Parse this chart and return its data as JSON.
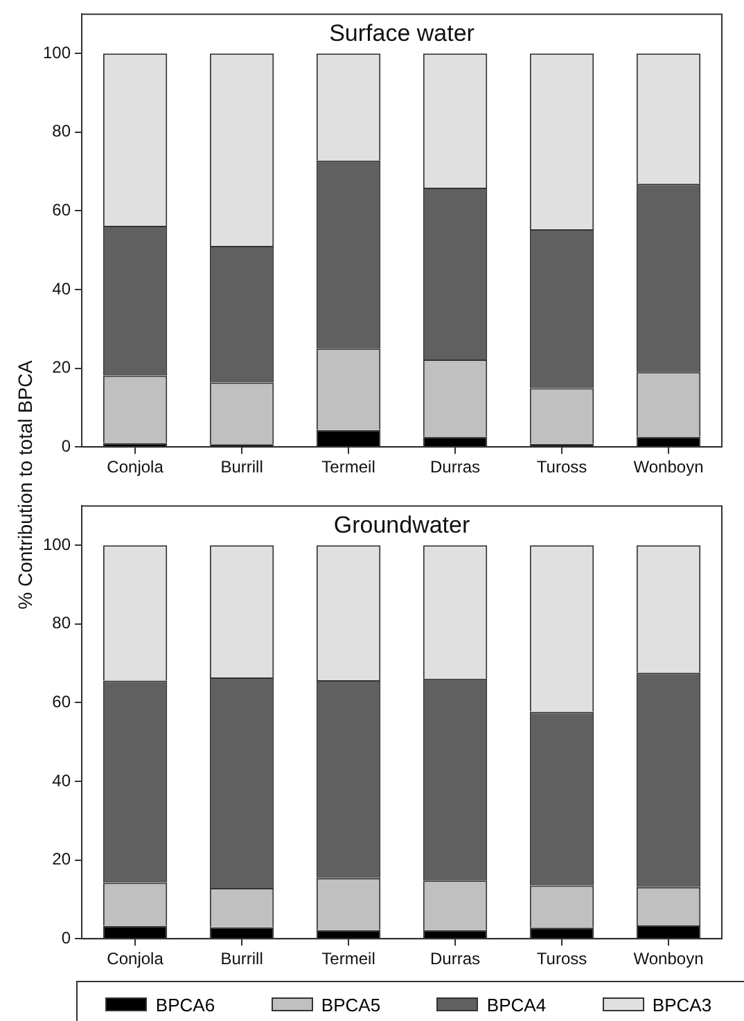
{
  "chart_data": [
    {
      "type": "bar",
      "title": "Surface water",
      "ylabel": "% Contribution to total BPCA",
      "stacked": true,
      "categories": [
        "Conjola",
        "Burrill",
        "Termeil",
        "Durras",
        "Tuross",
        "Wonboyn"
      ],
      "ylim": [
        0,
        110
      ],
      "yticks": [
        0,
        20,
        40,
        60,
        80,
        100
      ],
      "series": [
        {
          "color": "#000000",
          "values": [
            1.0,
            0.7,
            4.3,
            2.6,
            0.8,
            2.6
          ]
        },
        {
          "color": "#c0c0c0",
          "values": [
            17.1,
            15.6,
            20.7,
            19.6,
            14.1,
            16.4
          ]
        },
        {
          "color": "#606060",
          "values": [
            38.1,
            34.8,
            47.8,
            43.7,
            40.4,
            47.9
          ]
        },
        {
          "color": "#e0e0e0",
          "values": [
            43.8,
            48.9,
            27.2,
            34.1,
            44.7,
            33.1
          ]
        }
      ]
    },
    {
      "type": "bar",
      "title": "Groundwater",
      "stacked": true,
      "categories": [
        "Conjola",
        "Burrill",
        "Termeil",
        "Durras",
        "Tuross",
        "Wonboyn"
      ],
      "ylim": [
        0,
        110
      ],
      "yticks": [
        0,
        20,
        40,
        60,
        80,
        100
      ],
      "legend": "bottom",
      "series": [
        {
          "name": "BPCA6",
          "color": "#000000",
          "values": [
            3.3,
            2.9,
            2.2,
            2.2,
            2.8,
            3.4
          ]
        },
        {
          "name": "BPCA5",
          "color": "#c0c0c0",
          "values": [
            10.9,
            10.0,
            13.2,
            12.6,
            10.7,
            9.7
          ]
        },
        {
          "name": "BPCA4",
          "color": "#606060",
          "values": [
            51.4,
            53.5,
            50.3,
            51.3,
            44.2,
            54.5
          ]
        },
        {
          "name": "BPCA3",
          "color": "#e0e0e0",
          "values": [
            34.4,
            33.6,
            34.3,
            33.9,
            42.3,
            32.4
          ]
        }
      ]
    }
  ]
}
